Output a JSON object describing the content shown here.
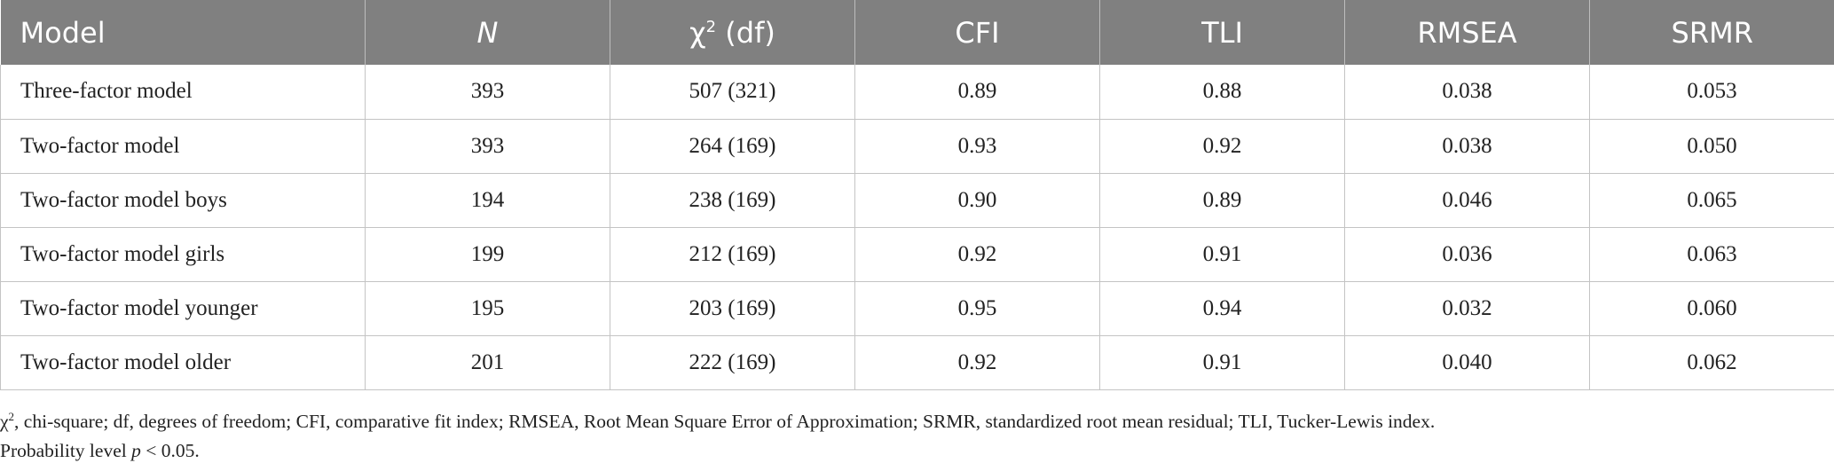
{
  "table": {
    "headers": {
      "model": "Model",
      "n": "N",
      "chi_symbol": "χ",
      "chi_sup": "2",
      "chi_rest": " (df)",
      "cfi": "CFI",
      "tli": "TLI",
      "rmsea": "RMSEA",
      "srmr": "SRMR"
    },
    "rows": [
      {
        "model": "Three-factor model",
        "n": "393",
        "chi": "507 (321)",
        "cfi": "0.89",
        "tli": "0.88",
        "rmsea": "0.038",
        "srmr": "0.053"
      },
      {
        "model": "Two-factor model",
        "n": "393",
        "chi": "264 (169)",
        "cfi": "0.93",
        "tli": "0.92",
        "rmsea": "0.038",
        "srmr": "0.050"
      },
      {
        "model": "Two-factor model boys",
        "n": "194",
        "chi": "238 (169)",
        "cfi": "0.90",
        "tli": "0.89",
        "rmsea": "0.046",
        "srmr": "0.065"
      },
      {
        "model": "Two-factor model girls",
        "n": "199",
        "chi": "212 (169)",
        "cfi": "0.92",
        "tli": "0.91",
        "rmsea": "0.036",
        "srmr": "0.063"
      },
      {
        "model": "Two-factor model younger",
        "n": "195",
        "chi": "203 (169)",
        "cfi": "0.95",
        "tli": "0.94",
        "rmsea": "0.032",
        "srmr": "0.060"
      },
      {
        "model": "Two-factor model older",
        "n": "201",
        "chi": "222 (169)",
        "cfi": "0.92",
        "tli": "0.91",
        "rmsea": "0.040",
        "srmr": "0.062"
      }
    ]
  },
  "notes": {
    "line1_symbol": "χ",
    "line1_sup": "2",
    "line1_rest": ", chi-square; df, degrees of freedom; CFI, comparative fit index; RMSEA, Root Mean Square Error of Approximation; SRMR, standardized root mean residual; TLI, Tucker-Lewis index.",
    "line2_prefix": "Probability level ",
    "line2_p": "p",
    "line2_suffix": " < 0.05."
  },
  "colors": {
    "header_bg": "#808080",
    "header_text": "#ffffff",
    "grid": "#c4c4c4"
  }
}
